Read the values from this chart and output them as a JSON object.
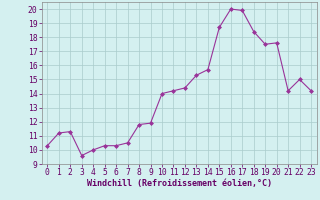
{
  "x": [
    0,
    1,
    2,
    3,
    4,
    5,
    6,
    7,
    8,
    9,
    10,
    11,
    12,
    13,
    14,
    15,
    16,
    17,
    18,
    19,
    20,
    21,
    22,
    23
  ],
  "y": [
    10.3,
    11.2,
    11.3,
    9.6,
    10.0,
    10.3,
    10.3,
    10.5,
    11.8,
    11.9,
    14.0,
    14.2,
    14.4,
    15.3,
    15.7,
    18.7,
    20.0,
    19.9,
    18.4,
    17.5,
    17.6,
    14.2,
    15.0,
    14.2
  ],
  "line_color": "#993399",
  "marker": "D",
  "marker_size": 2,
  "bg_color": "#d4f0f0",
  "grid_color": "#aacccc",
  "xlabel": "Windchill (Refroidissement éolien,°C)",
  "xlabel_fontsize": 6.0,
  "ylabel_ticks": [
    9,
    10,
    11,
    12,
    13,
    14,
    15,
    16,
    17,
    18,
    19,
    20
  ],
  "ylim": [
    9,
    20.5
  ],
  "xlim": [
    -0.5,
    23.5
  ],
  "tick_fontsize": 5.8,
  "label_color": "#660066",
  "spine_color": "#888888"
}
